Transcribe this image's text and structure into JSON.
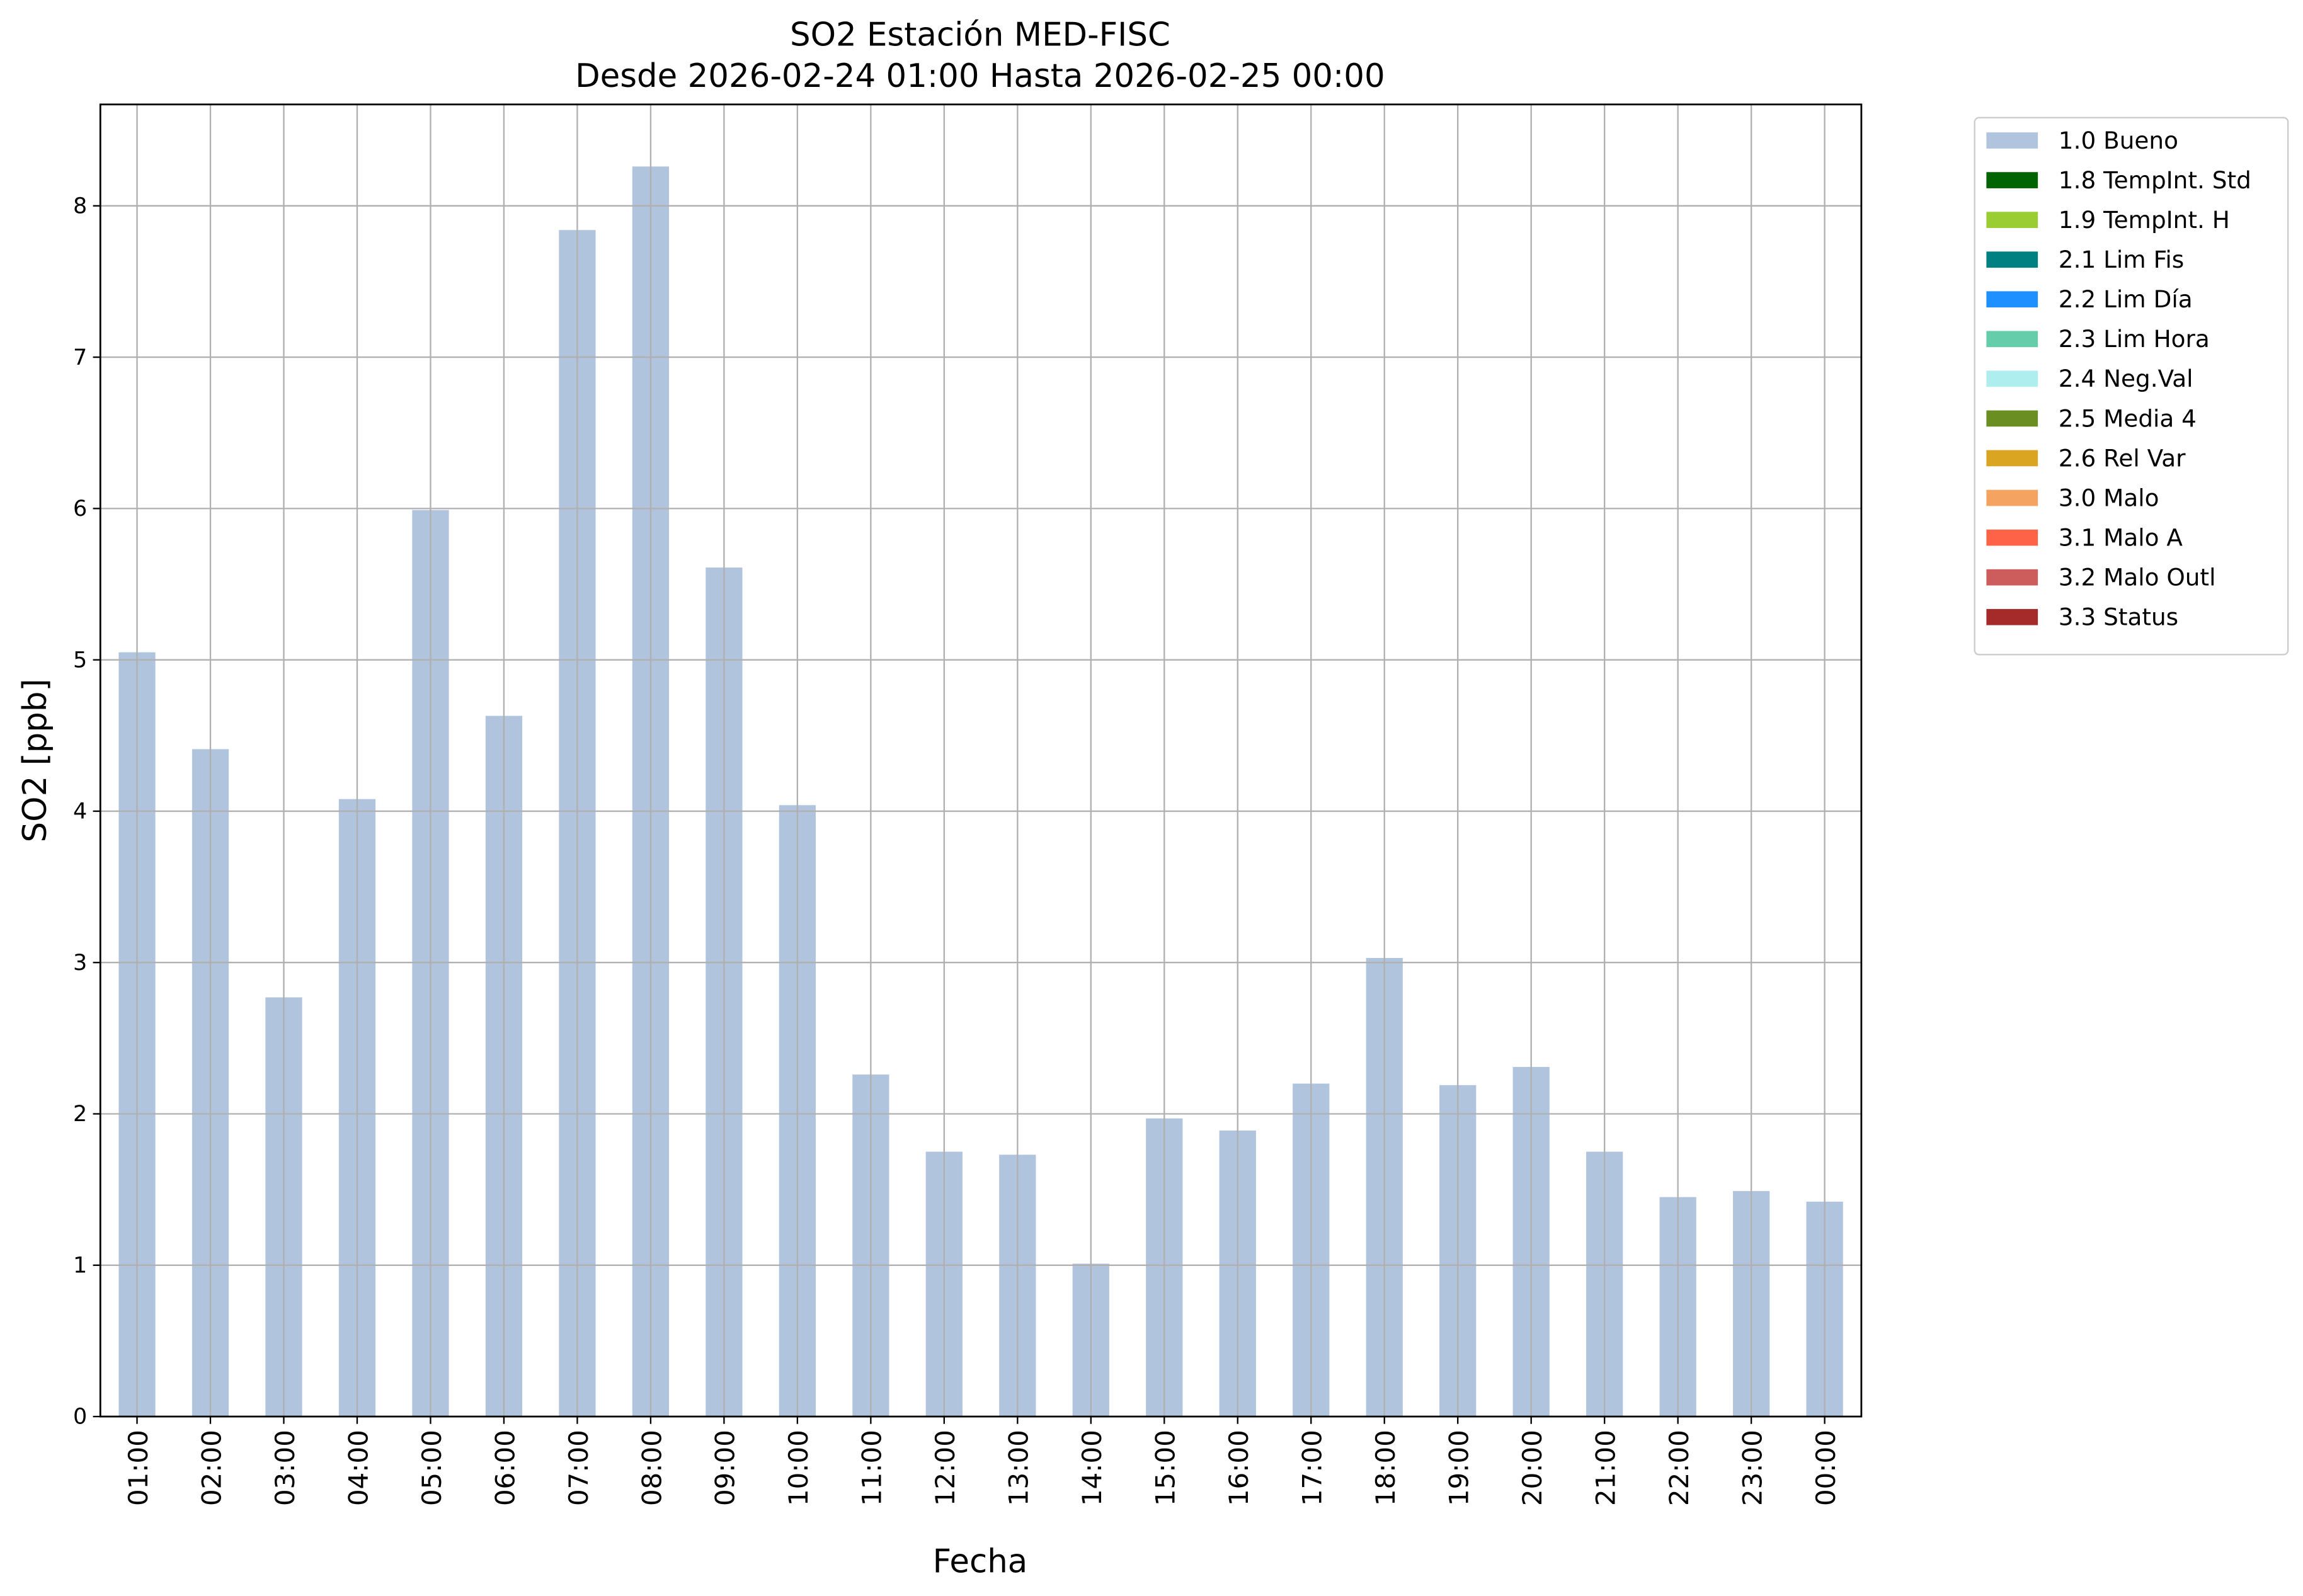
{
  "chart_data": {
    "type": "bar",
    "stacked": true,
    "title": "SO2 Estación MED-FISC",
    "subtitle": "Desde 2026-02-24 01:00 Hasta 2026-02-25 00:00",
    "x_label": "Fecha",
    "y_label": "SO2 [ppb]",
    "categories": [
      "01:00",
      "02:00",
      "03:00",
      "04:00",
      "05:00",
      "06:00",
      "07:00",
      "08:00",
      "09:00",
      "10:00",
      "11:00",
      "12:00",
      "13:00",
      "14:00",
      "15:00",
      "16:00",
      "17:00",
      "18:00",
      "19:00",
      "20:00",
      "21:00",
      "22:00",
      "23:00",
      "00:00"
    ],
    "series": [
      {
        "name": "1.0 Bueno",
        "color": "#b0c4de",
        "values": [
          5.05,
          4.41,
          2.77,
          4.08,
          5.99,
          4.63,
          7.84,
          8.26,
          5.61,
          4.04,
          2.26,
          1.75,
          1.73,
          1.01,
          1.97,
          1.89,
          2.2,
          3.03,
          2.19,
          2.31,
          1.75,
          1.45,
          1.49,
          1.42
        ]
      },
      {
        "name": "1.8 TempInt. Std",
        "color": "#006400",
        "values": [
          null,
          null,
          null,
          null,
          null,
          null,
          null,
          null,
          null,
          null,
          null,
          null,
          null,
          null,
          null,
          null,
          null,
          null,
          null,
          null,
          null,
          null,
          null,
          null
        ]
      },
      {
        "name": "1.9 TempInt. H",
        "color": "#9acd32",
        "values": [
          null,
          null,
          null,
          null,
          null,
          null,
          null,
          null,
          null,
          null,
          null,
          null,
          null,
          null,
          null,
          null,
          null,
          null,
          null,
          null,
          null,
          null,
          null,
          null
        ]
      },
      {
        "name": "2.1 Lim Fis",
        "color": "#008080",
        "values": [
          null,
          null,
          null,
          null,
          null,
          null,
          null,
          null,
          null,
          null,
          null,
          null,
          null,
          null,
          null,
          null,
          null,
          null,
          null,
          null,
          null,
          null,
          null,
          null
        ]
      },
      {
        "name": "2.2 Lim Día",
        "color": "#1e90ff",
        "values": [
          null,
          null,
          null,
          null,
          null,
          null,
          null,
          null,
          null,
          null,
          null,
          null,
          null,
          null,
          null,
          null,
          null,
          null,
          null,
          null,
          null,
          null,
          null,
          null
        ]
      },
      {
        "name": "2.3 Lim Hora",
        "color": "#66cdaa",
        "values": [
          null,
          null,
          null,
          null,
          null,
          null,
          null,
          null,
          null,
          null,
          null,
          null,
          null,
          null,
          null,
          null,
          null,
          null,
          null,
          null,
          null,
          null,
          null,
          null
        ]
      },
      {
        "name": "2.4 Neg.Val",
        "color": "#afeeee",
        "values": [
          null,
          null,
          null,
          null,
          null,
          null,
          null,
          null,
          null,
          null,
          null,
          null,
          null,
          null,
          null,
          null,
          null,
          null,
          null,
          null,
          null,
          null,
          null,
          null
        ]
      },
      {
        "name": "2.5 Media 4",
        "color": "#6b8e23",
        "values": [
          null,
          null,
          null,
          null,
          null,
          null,
          null,
          null,
          null,
          null,
          null,
          null,
          null,
          null,
          null,
          null,
          null,
          null,
          null,
          null,
          null,
          null,
          null,
          null
        ]
      },
      {
        "name": "2.6 Rel Var",
        "color": "#daa520",
        "values": [
          null,
          null,
          null,
          null,
          null,
          null,
          null,
          null,
          null,
          null,
          null,
          null,
          null,
          null,
          null,
          null,
          null,
          null,
          null,
          null,
          null,
          null,
          null,
          null
        ]
      },
      {
        "name": "3.0 Malo",
        "color": "#f4a460",
        "values": [
          null,
          null,
          null,
          null,
          null,
          null,
          null,
          null,
          null,
          null,
          null,
          null,
          null,
          null,
          null,
          null,
          null,
          null,
          null,
          null,
          null,
          null,
          null,
          null
        ]
      },
      {
        "name": "3.1 Malo A",
        "color": "#ff6347",
        "values": [
          null,
          null,
          null,
          null,
          null,
          null,
          null,
          null,
          null,
          null,
          null,
          null,
          null,
          null,
          null,
          null,
          null,
          null,
          null,
          null,
          null,
          null,
          null,
          null
        ]
      },
      {
        "name": "3.2 Malo Outl",
        "color": "#cd5c5c",
        "values": [
          null,
          null,
          null,
          null,
          null,
          null,
          null,
          null,
          null,
          null,
          null,
          null,
          null,
          null,
          null,
          null,
          null,
          null,
          null,
          null,
          null,
          null,
          null,
          null
        ]
      },
      {
        "name": "3.3 Status",
        "color": "#a52a2a",
        "values": [
          null,
          null,
          null,
          null,
          null,
          null,
          null,
          null,
          null,
          null,
          null,
          null,
          null,
          null,
          null,
          null,
          null,
          null,
          null,
          null,
          null,
          null,
          null,
          null
        ]
      }
    ],
    "ylim": [
      0,
      8.67
    ],
    "yticks": [
      0,
      1,
      2,
      3,
      4,
      5,
      6,
      7,
      8
    ],
    "grid": true,
    "legend": "outside right"
  }
}
